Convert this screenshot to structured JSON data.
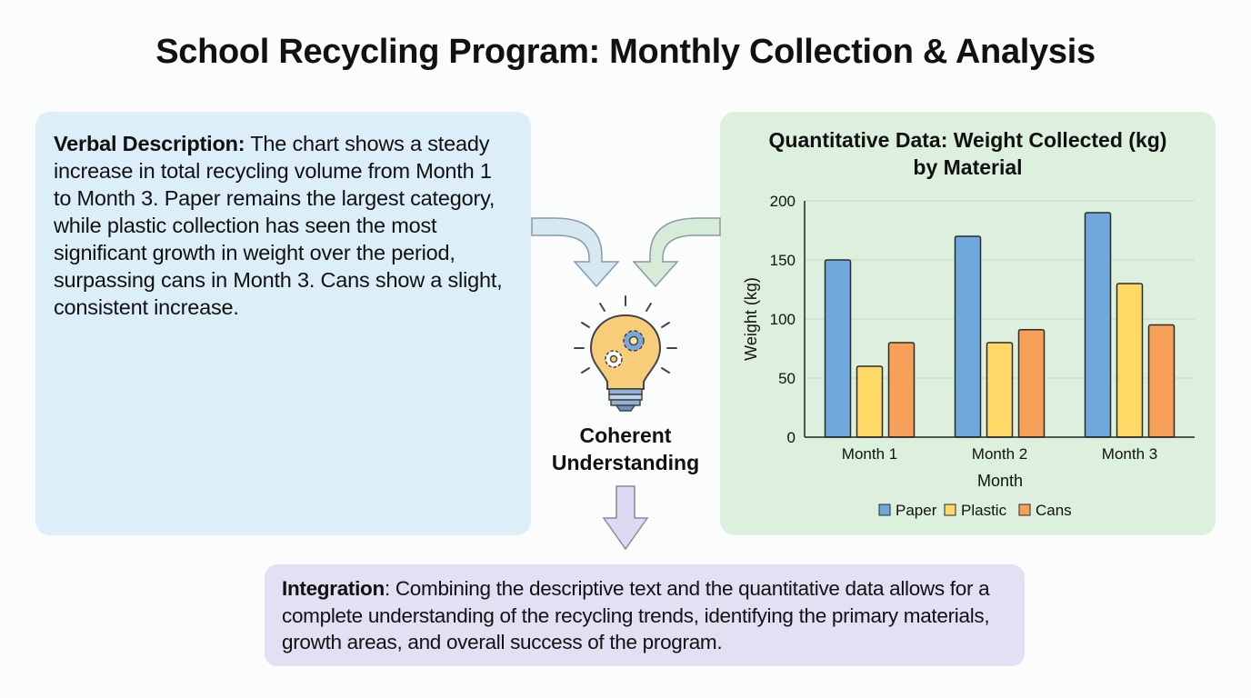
{
  "title": "School Recycling Program: Monthly Collection & Analysis",
  "verbal_panel": {
    "label": "Verbal Description:",
    "text": " The chart shows a steady increase in total recycling volume from Month 1 to Month 3. Paper remains the largest category, while plastic collection has seen the most significant growth in weight over the period, surpassing cans in Month 3. Cans show a slight, consistent increase."
  },
  "center": {
    "label_line1": "Coherent",
    "label_line2": "Understanding",
    "icon": "lightbulb-gears-icon"
  },
  "integration_panel": {
    "label": "Integration",
    "text": ": Combining the descriptive text and the quantitative data allows for a complete understanding of the recycling trends, identifying the primary materials, growth areas, and overall success of the program."
  },
  "colors": {
    "verbal_bg": "#dceef7",
    "quant_bg": "#dcf0dd",
    "integration_bg": "#e2e0f2",
    "paper": "#6fa8dc",
    "plastic": "#ffd966",
    "cans": "#f6a05a"
  },
  "chart_data": {
    "type": "bar",
    "title": "Quantitative Data: Weight Collected (kg) by Material",
    "title_line1": "Quantitative Data: Weight Collected (kg)",
    "title_line2": "by Material",
    "xlabel": "Month",
    "ylabel": "Weight (kg)",
    "categories": [
      "Month 1",
      "Month 2",
      "Month 3"
    ],
    "series": [
      {
        "name": "Paper",
        "values": [
          150,
          170,
          190
        ]
      },
      {
        "name": "Plastic",
        "values": [
          60,
          80,
          130
        ]
      },
      {
        "name": "Cans",
        "values": [
          80,
          91,
          95
        ]
      }
    ],
    "ylim": [
      0,
      200
    ],
    "yticks": [
      0,
      50,
      100,
      150,
      200
    ],
    "grid": true,
    "legend_position": "bottom"
  }
}
